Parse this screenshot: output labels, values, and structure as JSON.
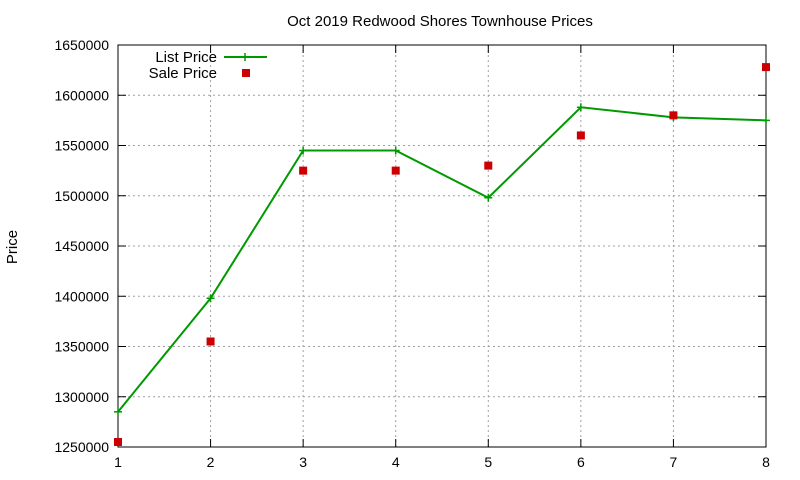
{
  "chart_data": {
    "type": "line",
    "title": "Oct 2019 Redwood Shores Townhouse Prices",
    "xlabel": "",
    "ylabel": "Price",
    "x": [
      1,
      2,
      3,
      4,
      5,
      6,
      7,
      8
    ],
    "xlim": [
      1,
      8
    ],
    "ylim": [
      1250000,
      1650000
    ],
    "xticks": [
      "1",
      "2",
      "3",
      "4",
      "5",
      "6",
      "7",
      "8"
    ],
    "yticks": [
      "1250000",
      "1300000",
      "1350000",
      "1400000",
      "1450000",
      "1500000",
      "1550000",
      "1600000",
      "1650000"
    ],
    "grid": true,
    "legend_position": "top-left",
    "series": [
      {
        "name": "List Price",
        "style": "line+cross",
        "color": "#009900",
        "values": [
          1285000,
          1398000,
          1545000,
          1545000,
          1498000,
          1588000,
          1578000,
          1575000
        ]
      },
      {
        "name": "Sale Price",
        "style": "square-points",
        "color": "#cc0000",
        "values": [
          1255000,
          1355000,
          1525000,
          1525000,
          1530000,
          1560000,
          1580000,
          1628000
        ]
      }
    ]
  }
}
